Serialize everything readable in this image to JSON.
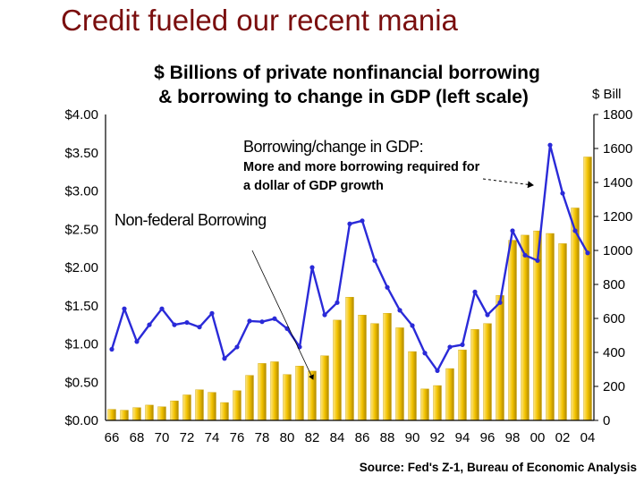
{
  "slide_title": "Credit fueled our recent mania",
  "chart_data": {
    "type": "bar",
    "title_lines": [
      "$ Billions of private nonfinancial borrowing",
      "& borrowing to change in GDP (left scale)"
    ],
    "categories": [
      "66",
      "67",
      "68",
      "69",
      "70",
      "71",
      "72",
      "73",
      "74",
      "75",
      "76",
      "77",
      "78",
      "79",
      "80",
      "81",
      "82",
      "83",
      "84",
      "85",
      "86",
      "87",
      "88",
      "89",
      "90",
      "91",
      "92",
      "93",
      "94",
      "95",
      "96",
      "97",
      "98",
      "99",
      "00",
      "01",
      "02",
      "03",
      "04"
    ],
    "x_tick_labels": [
      "66",
      "68",
      "70",
      "72",
      "74",
      "76",
      "78",
      "80",
      "82",
      "84",
      "86",
      "88",
      "90",
      "92",
      "94",
      "96",
      "98",
      "00",
      "02",
      "04"
    ],
    "left_axis": {
      "ylim": [
        0,
        4
      ],
      "tick_labels": [
        "$0.00",
        "$0.50",
        "$1.00",
        "$1.50",
        "$2.00",
        "$2.50",
        "$3.00",
        "$3.50",
        "$4.00"
      ]
    },
    "right_axis": {
      "label": "$ Bill",
      "ylim": [
        0,
        1800
      ],
      "tick_labels": [
        "0",
        "200",
        "400",
        "600",
        "800",
        "1000",
        "1200",
        "1400",
        "1600",
        "1800"
      ]
    },
    "series": [
      {
        "name": "Non-federal Borrowing",
        "type": "bar",
        "axis": "right",
        "color": "#f2c200",
        "values": [
          65,
          60,
          75,
          90,
          80,
          115,
          150,
          180,
          165,
          105,
          175,
          265,
          335,
          345,
          270,
          320,
          290,
          380,
          590,
          725,
          620,
          570,
          630,
          545,
          405,
          185,
          205,
          305,
          415,
          535,
          570,
          735,
          1060,
          1090,
          1115,
          1100,
          1040,
          1250,
          1550
        ]
      },
      {
        "name": "Borrowing/change in GDP",
        "type": "line",
        "axis": "left",
        "color": "#2a2ad8",
        "values": [
          0.93,
          1.46,
          1.03,
          1.25,
          1.46,
          1.25,
          1.28,
          1.22,
          1.4,
          0.81,
          0.96,
          1.3,
          1.29,
          1.33,
          1.2,
          0.96,
          2.0,
          1.38,
          1.54,
          2.57,
          2.61,
          2.09,
          1.74,
          1.44,
          1.24,
          0.88,
          0.65,
          0.96,
          0.99,
          1.68,
          1.38,
          1.54,
          2.48,
          2.16,
          2.09,
          3.6,
          2.97,
          2.48,
          2.19
        ]
      }
    ],
    "annotations": {
      "borrowing_gdp_head": "Borrowing/change in GDP:",
      "borrowing_gdp_line1": "More and more  borrowing required for",
      "borrowing_gdp_line2": "a dollar of GDP growth",
      "nonfederal": "Non-federal Borrowing"
    },
    "source": "Source: Fed's Z-1, Bureau of Economic Analysis"
  }
}
